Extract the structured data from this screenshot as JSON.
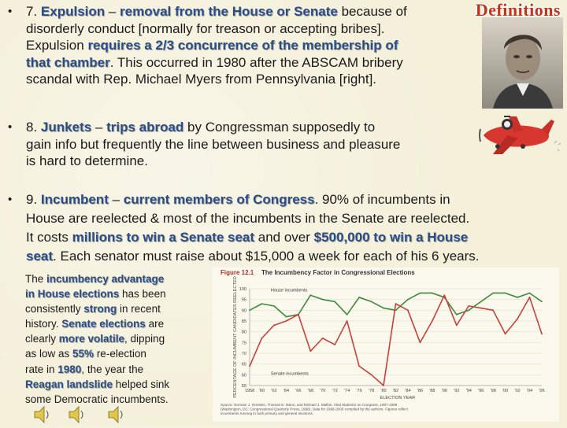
{
  "banner": "Definitions",
  "bullet7": {
    "line1": {
      "pre": "7. ",
      "term": "Expulsion",
      "dash": " – ",
      "def": "removal from the House or Senate",
      "post": " because of"
    },
    "line2": "disorderly conduct [normally for treason or accepting bribes].",
    "line3": {
      "pre": "Expulsion ",
      "hl": "requires a 2/3 concurrence of the membership of"
    },
    "line4": {
      "hl": "that chamber",
      "post": ". This occurred in 1980 after the ABSCAM bribery"
    },
    "line5": "scandal with Rep. Michael Myers from Pennsylvania [right]."
  },
  "bullet8": {
    "line1": {
      "pre": "8. ",
      "term": "Junkets",
      "dash": " – ",
      "def": "trips abroad",
      "post": " by Congressman supposedly to"
    },
    "line2": "gain info but frequently the line between business and pleasure",
    "line3": "is hard to determine."
  },
  "bullet9": {
    "line1": {
      "pre": "9. ",
      "term": "Incumbent",
      "dash": " – ",
      "def": "current members of Congress",
      "post": ". 90% of incumbents in"
    },
    "line2": "House are reelected & most of the incumbents in the Senate are reelected.",
    "line3": {
      "pre": "It costs ",
      "hl1": "millions to win a Senate seat",
      "mid": " and over ",
      "hl2": "$500,000 to win a House"
    },
    "line4": {
      "hl": "seat",
      "post": ". Each senator must raise about $15,000 a week for each of his 6 years."
    }
  },
  "lower": {
    "l1": {
      "pre": "The ",
      "hl": "incumbency advantage"
    },
    "l2": {
      "hl": "in House elections",
      "post": " has been"
    },
    "l3": "consistently strong in recent",
    "l4": {
      "hl": "Senate elections",
      "post": " are",
      "pre": "history. "
    },
    "l5": {
      "pre": "clearly ",
      "hl": "more volatile",
      "post": ", dipping"
    },
    "l6": {
      "pre": "as low as ",
      "hl": "55%",
      "post": " re-election"
    },
    "l7": {
      "pre": "rate in ",
      "hl": "1980",
      "post": ", the year the"
    },
    "l8": {
      "hl": "Reagan landslide",
      "post": " helped sink"
    },
    "l9": "some Democratic incumbents.",
    "l3_hl": "strong"
  },
  "chart_data": {
    "type": "line",
    "title": "Figure 12.1",
    "subtitle": "The Incumbency Factor in Congressional Elections",
    "xlabel": "ELECTION YEAR",
    "ylabel": "PERCENTAGE OF INCUMBENT CANDIDATES REELECTED",
    "ylim": [
      55,
      100
    ],
    "yticks": [
      100,
      95,
      90,
      85,
      80,
      75,
      70,
      65,
      60,
      55
    ],
    "x": [
      1958,
      1960,
      1962,
      1964,
      1966,
      1968,
      1970,
      1972,
      1974,
      1976,
      1978,
      1980,
      1982,
      1984,
      1986,
      1988,
      1990,
      1992,
      1994,
      1996,
      1998,
      2000,
      2002,
      2004,
      2006
    ],
    "xtick_labels": [
      "1958",
      "'60",
      "'62",
      "'64",
      "'66",
      "'68",
      "'70",
      "'72",
      "'74",
      "'76",
      "'78",
      "'80",
      "'82",
      "'84",
      "'86",
      "'88",
      "'90",
      "'92",
      "'94",
      "'96",
      "'98",
      "'00",
      "'02",
      "'04",
      "'06"
    ],
    "series": [
      {
        "name": "House incumbents",
        "color": "#3f8a3a",
        "values": [
          90,
          93,
          92,
          87,
          88,
          97,
          95,
          94,
          88,
          96,
          94,
          91,
          90,
          95,
          98,
          98,
          96,
          88,
          90,
          94,
          98,
          98,
          96,
          98,
          94
        ]
      },
      {
        "name": "Senate incumbents",
        "color": "#c7423a",
        "values": [
          64,
          77,
          83,
          85,
          88,
          71,
          77,
          74,
          85,
          64,
          60,
          55,
          93,
          90,
          75,
          85,
          97,
          83,
          92,
          91,
          90,
          79,
          86,
          96,
          79
        ]
      }
    ],
    "source": "Source: Norman J. Ornstein, Thomas E. Mann, and Michael J. Malbin, Vital Statistics on Congress, 1997-1998 (Washington, DC: Congressional Quarterly Press, 1998). Data for 1998-2006 compiled by the authors. Figures reflect incumbents running in both primary and general elections."
  },
  "colors": {
    "highlight": "#2a4c8a",
    "banner": "#c2321c",
    "chart_title": "#b0302a"
  }
}
